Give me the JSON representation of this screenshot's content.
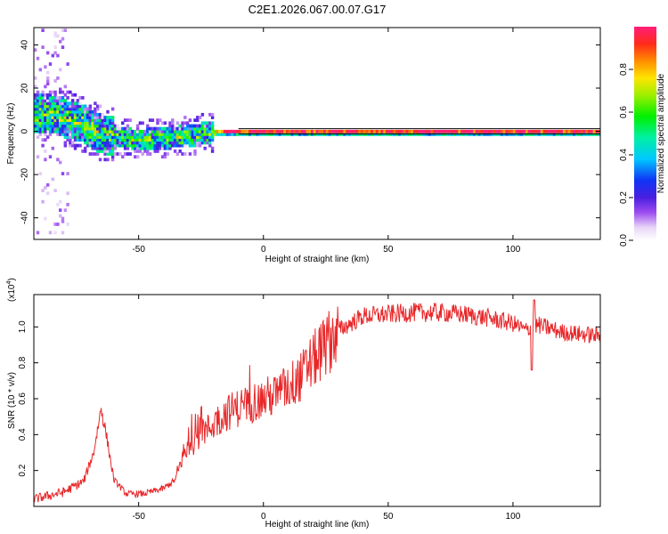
{
  "title": "C2E1.2026.067.00.07.G17",
  "chart_data": [
    {
      "type": "heatmap",
      "id": "spectrogram",
      "xlabel": "Height of straight line (km)",
      "ylabel": "Frequency (Hz)",
      "xlim": [
        -92,
        135
      ],
      "ylim": [
        -50,
        48
      ],
      "xticks": [
        -50,
        0,
        50,
        100
      ],
      "yticks": [
        -40,
        -20,
        0,
        20,
        40
      ],
      "colorbar": {
        "label": "Normalized spectral amplitude",
        "range": [
          0,
          1
        ],
        "ticks": [
          "0.0",
          "0.2",
          "0.4",
          "0.6",
          "0.8"
        ],
        "tick_values": [
          0.0,
          0.2,
          0.4,
          0.6,
          0.8
        ]
      },
      "ridge": [
        {
          "x": -85,
          "y": 8
        },
        {
          "x": -75,
          "y": 5
        },
        {
          "x": -65,
          "y": -1
        },
        {
          "x": -55,
          "y": -3
        },
        {
          "x": -50,
          "y": -4
        },
        {
          "x": -40,
          "y": -3
        },
        {
          "x": -30,
          "y": -2
        },
        {
          "x": -25,
          "y": -1
        },
        {
          "x": -15,
          "y": 0
        },
        {
          "x": 0,
          "y": 0
        },
        {
          "x": 50,
          "y": 0
        },
        {
          "x": 100,
          "y": 0
        },
        {
          "x": 135,
          "y": 0
        }
      ],
      "reference_line_hz": 0
    },
    {
      "type": "line",
      "id": "snr",
      "xlabel": "Height of straight line (km)",
      "ylabel": "SNR (10 * v/v)",
      "scale_label_base": "(x10",
      "scale_label_exp": "4",
      "scale_label_close": ")",
      "xlim": [
        -92,
        135
      ],
      "ylim": [
        0.0,
        1.18
      ],
      "xticks": [
        -50,
        0,
        50,
        100
      ],
      "yticks": [
        "0.2",
        "0.4",
        "0.6",
        "0.8",
        "1.0"
      ],
      "ytick_values": [
        0.2,
        0.4,
        0.6,
        0.8,
        1.0
      ],
      "series": [
        {
          "name": "SNR",
          "color": "#e8282a",
          "envelope": [
            {
              "x": -92,
              "y": 0.04
            },
            {
              "x": -80,
              "y": 0.08
            },
            {
              "x": -72,
              "y": 0.14
            },
            {
              "x": -68,
              "y": 0.3
            },
            {
              "x": -65,
              "y": 0.55
            },
            {
              "x": -63,
              "y": 0.4
            },
            {
              "x": -60,
              "y": 0.15
            },
            {
              "x": -55,
              "y": 0.07
            },
            {
              "x": -48,
              "y": 0.07
            },
            {
              "x": -40,
              "y": 0.1
            },
            {
              "x": -35,
              "y": 0.15
            },
            {
              "x": -32,
              "y": 0.3
            },
            {
              "x": -25,
              "y": 0.4
            },
            {
              "x": -15,
              "y": 0.52
            },
            {
              "x": -5,
              "y": 0.58
            },
            {
              "x": 5,
              "y": 0.62
            },
            {
              "x": 15,
              "y": 0.72
            },
            {
              "x": 22,
              "y": 0.85
            },
            {
              "x": 30,
              "y": 0.98
            },
            {
              "x": 40,
              "y": 1.06
            },
            {
              "x": 50,
              "y": 1.07
            },
            {
              "x": 60,
              "y": 1.08
            },
            {
              "x": 70,
              "y": 1.08
            },
            {
              "x": 80,
              "y": 1.07
            },
            {
              "x": 90,
              "y": 1.05
            },
            {
              "x": 100,
              "y": 1.02
            },
            {
              "x": 105,
              "y": 0.98
            },
            {
              "x": 110,
              "y": 1.01
            },
            {
              "x": 120,
              "y": 0.97
            },
            {
              "x": 135,
              "y": 0.95
            }
          ],
          "spikes": [
            {
              "x": 107.5,
              "y": 0.76
            },
            {
              "x": 108.5,
              "y": 1.15
            }
          ]
        }
      ]
    }
  ]
}
